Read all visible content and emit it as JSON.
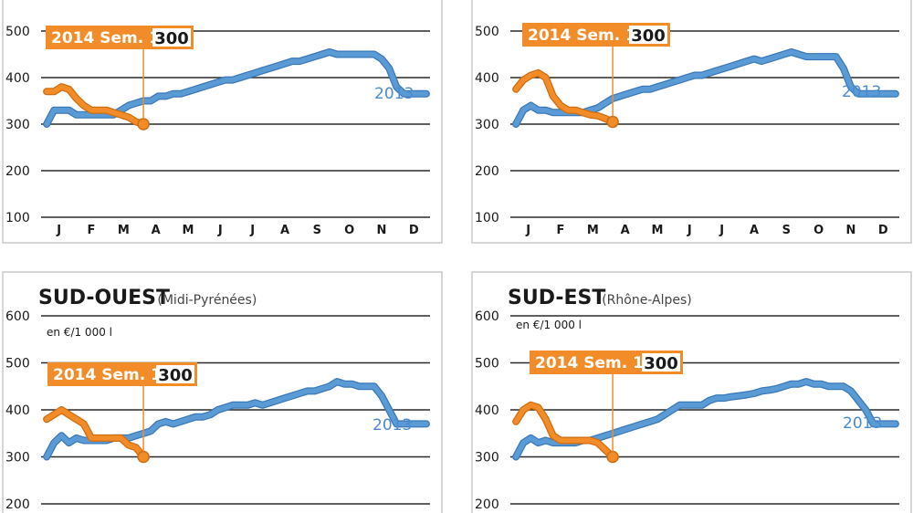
{
  "colors": {
    "line_2013": "#5b9bd5",
    "line_2013_outline": "#3a78b8",
    "line_2014": "#f28c28",
    "line_2014_outline": "#d06d10",
    "callout_bg": "#f28c28",
    "band_light": "#e3f2fb",
    "band_dark": "#c4e5f6"
  },
  "chart_data": [
    {
      "type": "line",
      "title": "",
      "subtitle": "",
      "unit": "",
      "ylim": [
        100,
        600
      ],
      "yticks": [
        "100",
        "200",
        "300",
        "400",
        "500"
      ],
      "x_months": [
        "J",
        "F",
        "M",
        "A",
        "M",
        "J",
        "J",
        "A",
        "S",
        "O",
        "N",
        "D"
      ],
      "series": [
        {
          "name": "2013",
          "x": [
            1,
            2,
            3,
            4,
            5,
            6,
            7,
            8,
            9,
            10,
            11,
            12,
            13,
            14,
            15,
            16,
            17,
            18,
            19,
            20,
            21,
            22,
            23,
            24,
            25,
            26,
            27,
            28,
            29,
            30,
            31,
            32,
            33,
            34,
            35,
            36,
            37,
            38,
            39,
            40,
            41,
            42,
            43,
            44,
            45,
            46,
            47,
            48,
            49,
            50,
            51,
            52
          ],
          "values": [
            300,
            330,
            330,
            330,
            320,
            320,
            320,
            320,
            320,
            320,
            330,
            340,
            345,
            350,
            350,
            360,
            360,
            365,
            365,
            370,
            375,
            380,
            385,
            390,
            395,
            395,
            400,
            405,
            410,
            415,
            420,
            425,
            430,
            435,
            435,
            440,
            445,
            450,
            455,
            450,
            450,
            450,
            450,
            450,
            450,
            440,
            420,
            380,
            365,
            365,
            365,
            365
          ]
        },
        {
          "name": "2014",
          "x": [
            1,
            2,
            3,
            4,
            5,
            6,
            7,
            8,
            9,
            10,
            11,
            12,
            13,
            14
          ],
          "values": [
            370,
            370,
            380,
            375,
            355,
            340,
            330,
            330,
            330,
            325,
            320,
            315,
            305,
            300
          ]
        }
      ],
      "callout": {
        "text": "2014 Sem. 14",
        "value": "300"
      },
      "series_label": "2013"
    },
    {
      "type": "line",
      "title": "",
      "subtitle": "",
      "unit": "",
      "ylim": [
        100,
        600
      ],
      "yticks": [
        "100",
        "200",
        "300",
        "400",
        "500"
      ],
      "x_months": [
        "J",
        "F",
        "M",
        "A",
        "M",
        "J",
        "J",
        "A",
        "S",
        "O",
        "N",
        "D"
      ],
      "series": [
        {
          "name": "2013",
          "x": [
            1,
            2,
            3,
            4,
            5,
            6,
            7,
            8,
            9,
            10,
            11,
            12,
            13,
            14,
            15,
            16,
            17,
            18,
            19,
            20,
            21,
            22,
            23,
            24,
            25,
            26,
            27,
            28,
            29,
            30,
            31,
            32,
            33,
            34,
            35,
            36,
            37,
            38,
            39,
            40,
            41,
            42,
            43,
            44,
            45,
            46,
            47,
            48,
            49,
            50,
            51,
            52
          ],
          "values": [
            300,
            330,
            340,
            330,
            330,
            325,
            325,
            325,
            325,
            325,
            330,
            335,
            345,
            355,
            360,
            365,
            370,
            375,
            375,
            380,
            385,
            390,
            395,
            400,
            405,
            405,
            410,
            415,
            420,
            425,
            430,
            435,
            440,
            435,
            440,
            445,
            450,
            455,
            450,
            445,
            445,
            445,
            445,
            445,
            420,
            380,
            365,
            365,
            365,
            365,
            365,
            365
          ]
        },
        {
          "name": "2014",
          "x": [
            1,
            2,
            3,
            4,
            5,
            6,
            7,
            8,
            9,
            10,
            11,
            12,
            13,
            14
          ],
          "values": [
            375,
            395,
            405,
            410,
            400,
            360,
            340,
            330,
            330,
            325,
            320,
            318,
            312,
            305
          ]
        }
      ],
      "callout": {
        "text": "2014 Sem. 14",
        "value": "300"
      },
      "series_label": "2013"
    },
    {
      "type": "line",
      "title": "SUD-OUEST",
      "subtitle": "(Midi-Pyrénées)",
      "unit": "en €/1 000 l",
      "ylim": [
        200,
        600
      ],
      "yticks": [
        "200",
        "300",
        "400",
        "500",
        "600"
      ],
      "x_months": [],
      "series": [
        {
          "name": "2013",
          "x": [
            1,
            2,
            3,
            4,
            5,
            6,
            7,
            8,
            9,
            10,
            11,
            12,
            13,
            14,
            15,
            16,
            17,
            18,
            19,
            20,
            21,
            22,
            23,
            24,
            25,
            26,
            27,
            28,
            29,
            30,
            31,
            32,
            33,
            34,
            35,
            36,
            37,
            38,
            39,
            40,
            41,
            42,
            43,
            44,
            45,
            46,
            47,
            48,
            49,
            50,
            51,
            52
          ],
          "values": [
            300,
            330,
            345,
            330,
            340,
            335,
            335,
            335,
            335,
            340,
            340,
            340,
            345,
            350,
            355,
            370,
            375,
            370,
            375,
            380,
            385,
            385,
            390,
            400,
            405,
            410,
            410,
            410,
            415,
            410,
            415,
            420,
            425,
            430,
            435,
            440,
            440,
            445,
            450,
            460,
            455,
            455,
            450,
            450,
            450,
            430,
            400,
            370,
            370,
            370,
            370,
            370
          ]
        },
        {
          "name": "2014",
          "x": [
            1,
            2,
            3,
            4,
            5,
            6,
            7,
            8,
            9,
            10,
            11,
            12,
            13,
            14
          ],
          "values": [
            380,
            390,
            400,
            390,
            380,
            370,
            340,
            340,
            340,
            340,
            340,
            325,
            320,
            300
          ]
        }
      ],
      "callout": {
        "text": "2014 Sem. 14",
        "value": "300"
      },
      "series_label": "2013"
    },
    {
      "type": "line",
      "title": "SUD-EST",
      "subtitle": "(Rhône-Alpes)",
      "unit": "en €/1 000 l",
      "ylim": [
        200,
        600
      ],
      "yticks": [
        "200",
        "300",
        "400",
        "500",
        "600"
      ],
      "x_months": [],
      "series": [
        {
          "name": "2013",
          "x": [
            1,
            2,
            3,
            4,
            5,
            6,
            7,
            8,
            9,
            10,
            11,
            12,
            13,
            14,
            15,
            16,
            17,
            18,
            19,
            20,
            21,
            22,
            23,
            24,
            25,
            26,
            27,
            28,
            29,
            30,
            31,
            32,
            33,
            34,
            35,
            36,
            37,
            38,
            39,
            40,
            41,
            42,
            43,
            44,
            45,
            46,
            47,
            48,
            49,
            50,
            51,
            52
          ],
          "values": [
            300,
            330,
            340,
            330,
            335,
            330,
            330,
            330,
            330,
            335,
            335,
            340,
            345,
            350,
            355,
            360,
            365,
            370,
            375,
            380,
            390,
            400,
            410,
            410,
            410,
            410,
            420,
            425,
            425,
            428,
            430,
            432,
            435,
            440,
            442,
            445,
            450,
            455,
            455,
            460,
            455,
            455,
            450,
            450,
            450,
            440,
            420,
            400,
            370,
            370,
            370,
            370
          ]
        },
        {
          "name": "2014",
          "x": [
            1,
            2,
            3,
            4,
            5,
            6,
            7,
            8,
            9,
            10,
            11,
            12,
            13,
            14
          ],
          "values": [
            375,
            400,
            410,
            405,
            380,
            345,
            335,
            335,
            335,
            335,
            335,
            330,
            315,
            300
          ]
        }
      ],
      "callout": {
        "text": "2014 Sem. 14",
        "value": "300"
      },
      "series_label": "2013"
    }
  ]
}
